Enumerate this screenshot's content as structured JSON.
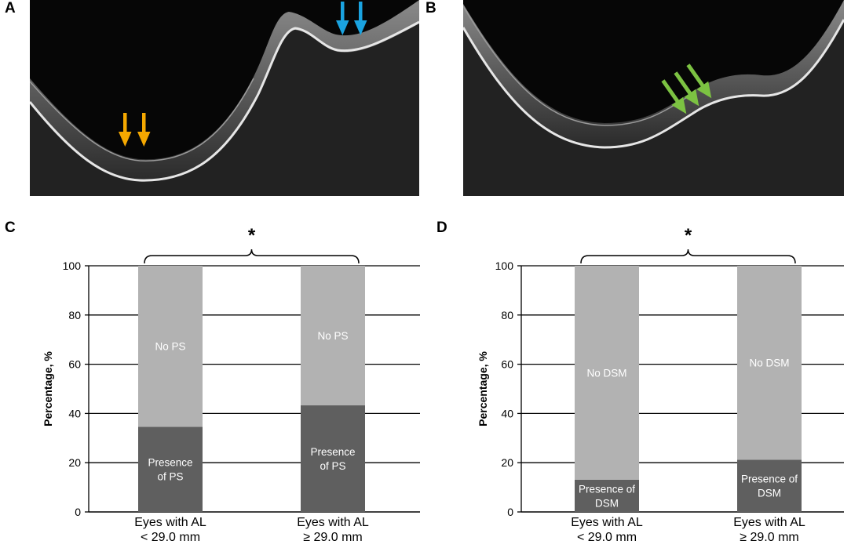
{
  "panels": {
    "a": {
      "letter": "A"
    },
    "b": {
      "letter": "B"
    },
    "c": {
      "letter": "C"
    },
    "d": {
      "letter": "D"
    }
  },
  "colors": {
    "orange_arrow": "#f5a800",
    "blue_arrow": "#1aa3e0",
    "green_arrow": "#7cc242",
    "bar_dark": "#5f5f5f",
    "bar_light": "#b2b2b2"
  },
  "chart_data": [
    {
      "type": "bar",
      "panel": "C",
      "stacked": true,
      "categories": [
        [
          "Eyes with AL",
          "< 29.0 mm"
        ],
        [
          "Eyes with AL",
          "≥ 29.0 mm"
        ]
      ],
      "series": [
        {
          "name": "Presence of PS",
          "label_lines": [
            "Presence",
            "of PS"
          ],
          "values": [
            34.6,
            43.3
          ],
          "color": "#5f5f5f"
        },
        {
          "name": "No PS",
          "label_lines": [
            "No PS"
          ],
          "values": [
            65.4,
            56.7
          ],
          "color": "#b2b2b2"
        }
      ],
      "ylabel": "Percentage, %",
      "ylim": [
        0,
        100
      ],
      "yticks": [
        0,
        20,
        40,
        60,
        80,
        100
      ],
      "grid": true,
      "significance": "*"
    },
    {
      "type": "bar",
      "panel": "D",
      "stacked": true,
      "categories": [
        [
          "Eyes with AL",
          "< 29.0 mm"
        ],
        [
          "Eyes with AL",
          "≥ 29.0 mm"
        ]
      ],
      "series": [
        {
          "name": "Presence of DSM",
          "label_lines": [
            "Presence of",
            "DSM"
          ],
          "values": [
            13.1,
            21.2
          ],
          "color": "#5f5f5f"
        },
        {
          "name": "No DSM",
          "label_lines": [
            "No DSM"
          ],
          "values": [
            86.9,
            78.8
          ],
          "color": "#b2b2b2"
        }
      ],
      "ylabel": "Percentage, %",
      "ylim": [
        0,
        100
      ],
      "yticks": [
        0,
        20,
        40,
        60,
        80,
        100
      ],
      "grid": true,
      "significance": "*"
    }
  ]
}
